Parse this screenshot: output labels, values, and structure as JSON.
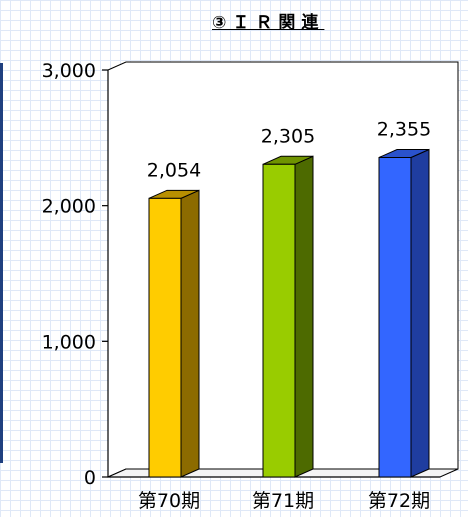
{
  "header": {
    "title": "③ＩＲ関連"
  },
  "chart_data": {
    "type": "bar",
    "title": "",
    "xlabel": "",
    "ylabel": "",
    "categories": [
      "第70期",
      "第71期",
      "第72期"
    ],
    "values": [
      2054,
      2305,
      2355
    ],
    "data_labels": [
      "2,054",
      "2,305",
      "2,355"
    ],
    "ylim": [
      0,
      3000
    ],
    "yticks": [
      0,
      1000,
      2000,
      3000
    ],
    "ytick_labels": [
      "0",
      "1,000",
      "2,000",
      "3,000"
    ],
    "grid": false,
    "legend": "none",
    "three_d": true,
    "colors": [
      {
        "front": "#ffcc00",
        "side": "#8c6b00",
        "top": "#b89000"
      },
      {
        "front": "#99cc00",
        "side": "#4d6a00",
        "top": "#6f9300"
      },
      {
        "front": "#3366ff",
        "side": "#1f3da0",
        "top": "#2a52cc"
      }
    ]
  }
}
